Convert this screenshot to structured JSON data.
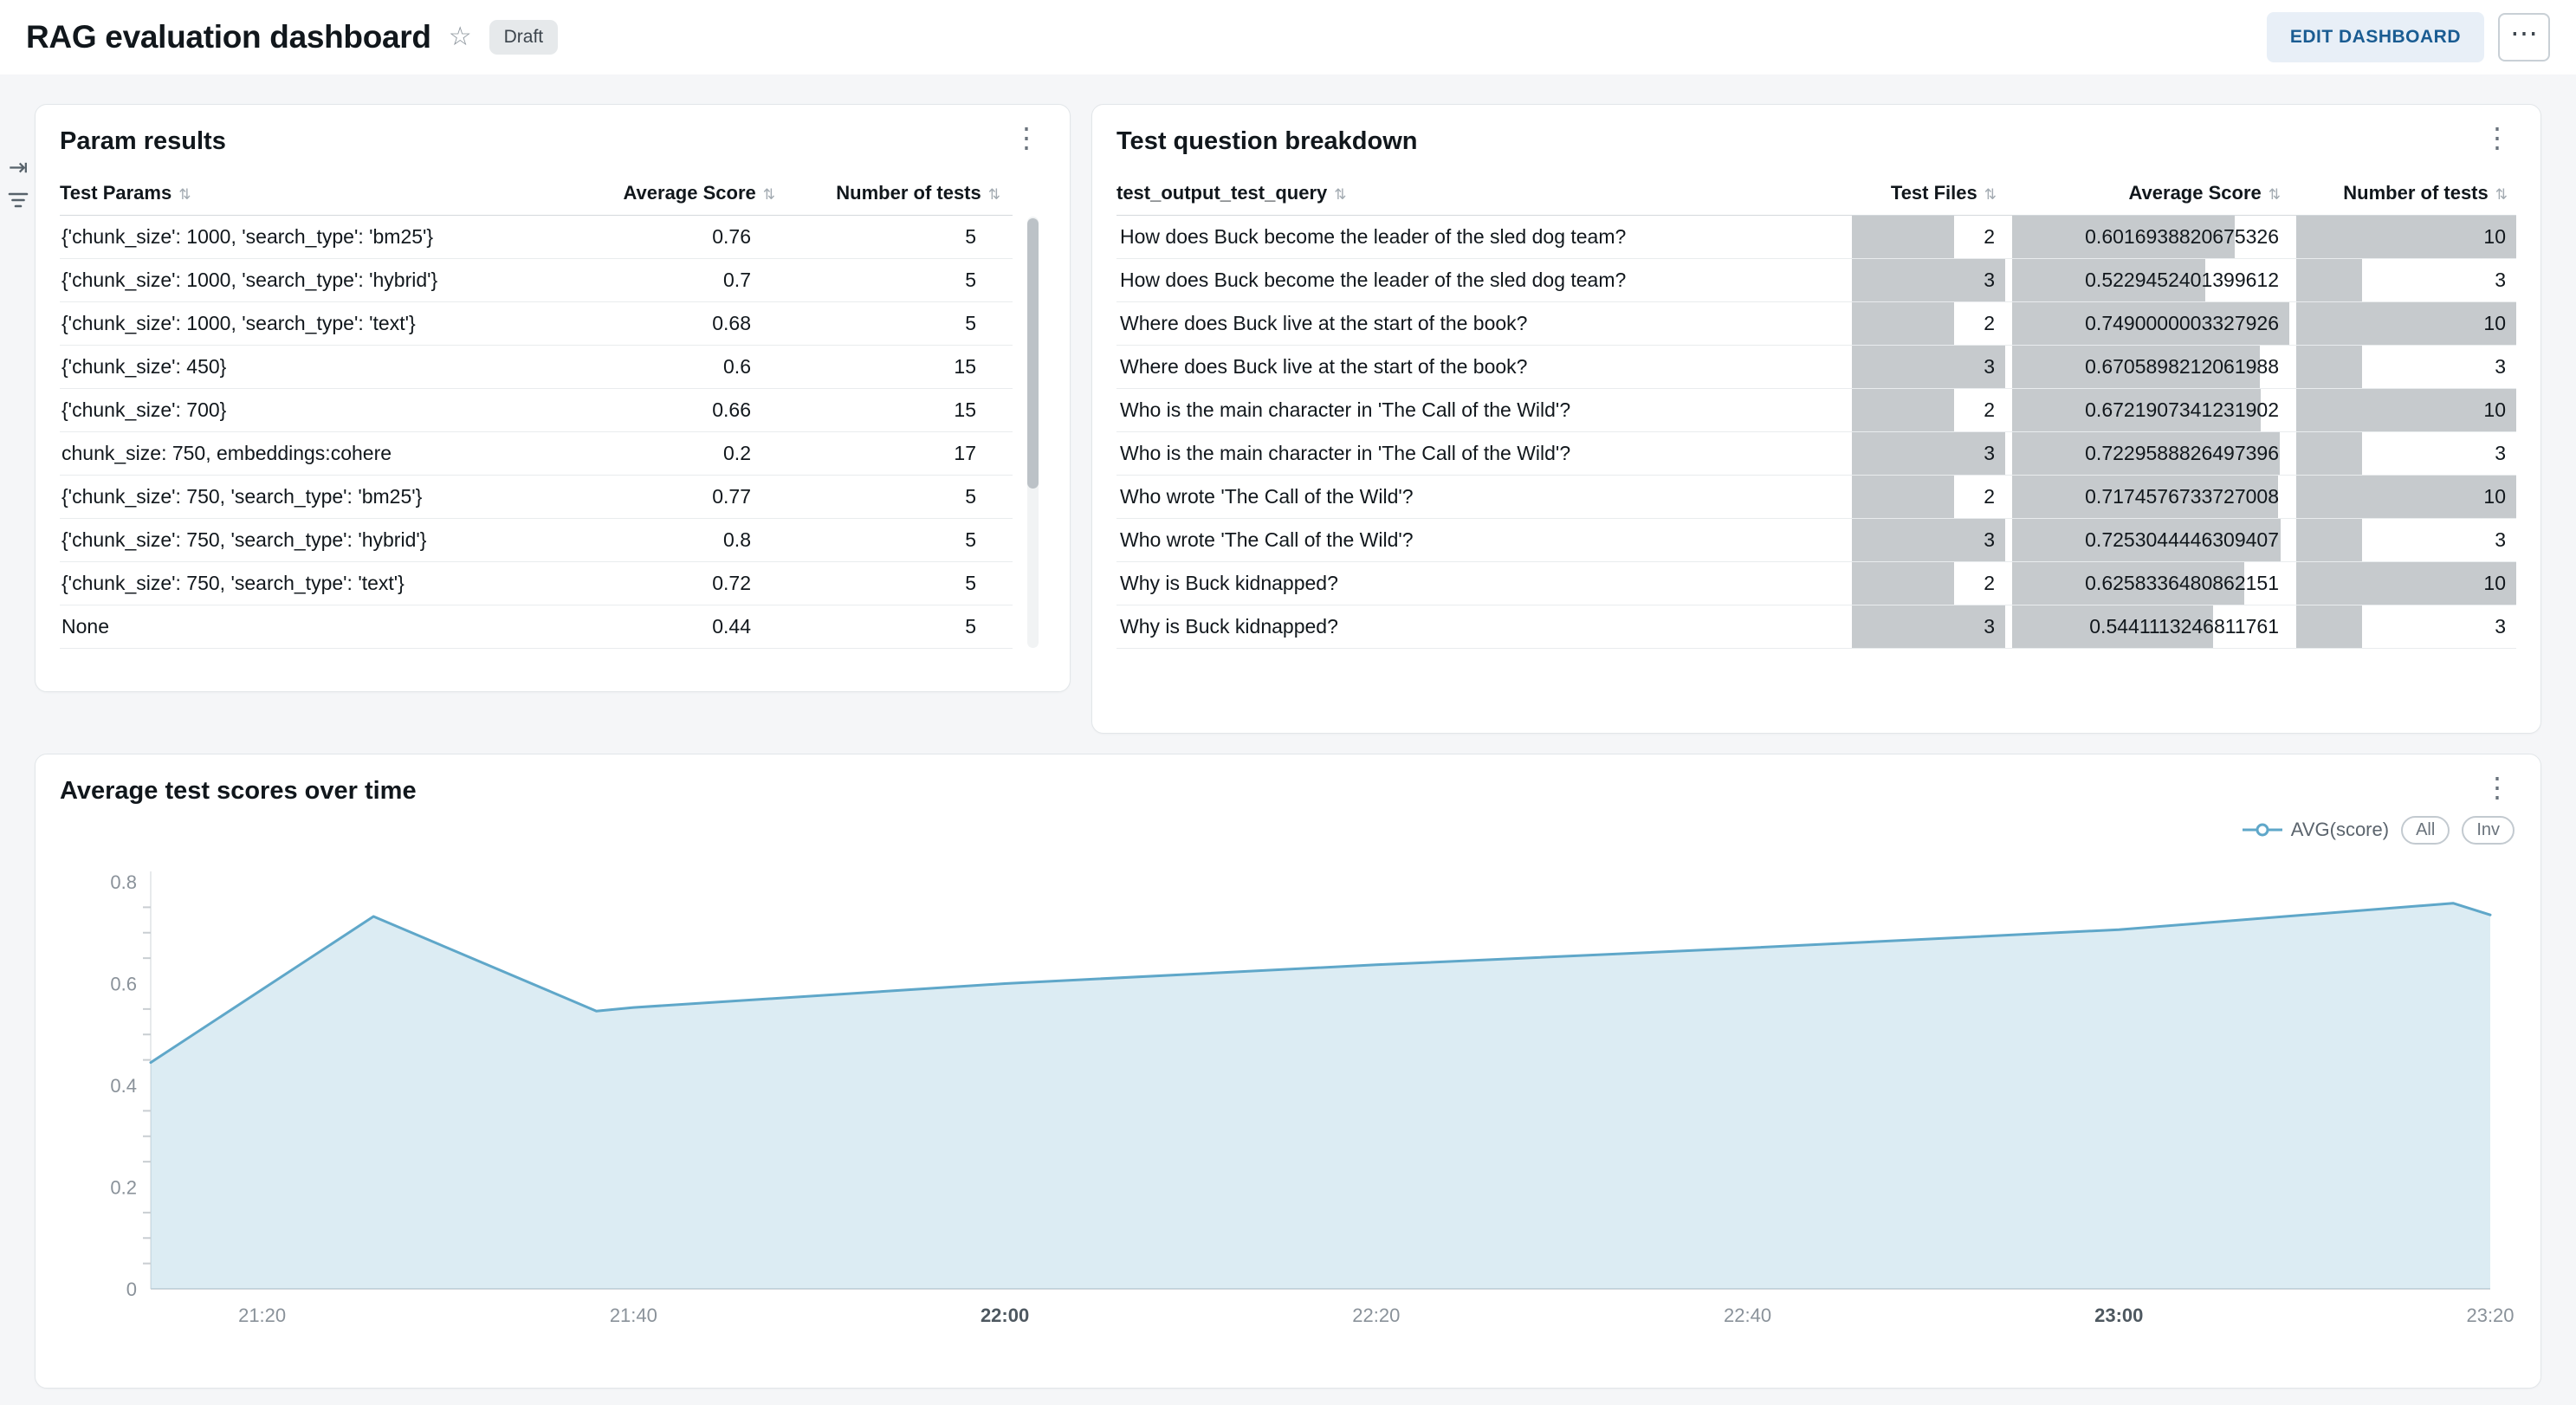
{
  "header": {
    "title": "RAG evaluation dashboard",
    "status_badge": "Draft",
    "edit_button": "EDIT DASHBOARD"
  },
  "icons": {
    "star": "☆",
    "kebab": "⋮",
    "more": "⋯",
    "sort": "⇅",
    "collapse": "⇥"
  },
  "colors": {
    "accent_blue": "#1a5c92",
    "chart_line": "#5fa7c9",
    "data_bar_gray": "#c6cacd"
  },
  "param_results": {
    "title": "Param results",
    "columns": [
      {
        "label": "Test Params",
        "align": "left"
      },
      {
        "label": "Average Score",
        "align": "right"
      },
      {
        "label": "Number of tests",
        "align": "right"
      }
    ],
    "rows": [
      {
        "params": "{'chunk_size': 1000, 'search_type': 'bm25'}",
        "avg_score": "0.76",
        "num_tests": "5"
      },
      {
        "params": "{'chunk_size': 1000, 'search_type': 'hybrid'}",
        "avg_score": "0.7",
        "num_tests": "5"
      },
      {
        "params": "{'chunk_size': 1000, 'search_type': 'text'}",
        "avg_score": "0.68",
        "num_tests": "5"
      },
      {
        "params": "{'chunk_size': 450}",
        "avg_score": "0.6",
        "num_tests": "15"
      },
      {
        "params": "{'chunk_size': 700}",
        "avg_score": "0.66",
        "num_tests": "15"
      },
      {
        "params": "chunk_size: 750, embeddings:cohere",
        "avg_score": "0.2",
        "num_tests": "17"
      },
      {
        "params": "{'chunk_size': 750, 'search_type': 'bm25'}",
        "avg_score": "0.77",
        "num_tests": "5"
      },
      {
        "params": "{'chunk_size': 750, 'search_type': 'hybrid'}",
        "avg_score": "0.8",
        "num_tests": "5"
      },
      {
        "params": "{'chunk_size': 750, 'search_type': 'text'}",
        "avg_score": "0.72",
        "num_tests": "5"
      },
      {
        "params": "None",
        "avg_score": "0.44",
        "num_tests": "5"
      }
    ]
  },
  "question_breakdown": {
    "title": "Test question breakdown",
    "columns": [
      {
        "label": "test_output_test_query",
        "align": "left"
      },
      {
        "label": "Test Files",
        "align": "right"
      },
      {
        "label": "Average Score",
        "align": "right"
      },
      {
        "label": "Number of tests",
        "align": "right"
      }
    ],
    "rows": [
      {
        "query": "How does Buck become the leader of the sled dog team?",
        "test_files": 2,
        "avg_score": "0.6016938820675326",
        "num_tests": 10
      },
      {
        "query": "How does Buck become the leader of the sled dog team?",
        "test_files": 3,
        "avg_score": "0.5229452401399612",
        "num_tests": 3
      },
      {
        "query": "Where does Buck live at the start of the book?",
        "test_files": 2,
        "avg_score": "0.7490000003327926",
        "num_tests": 10
      },
      {
        "query": "Where does Buck live at the start of the book?",
        "test_files": 3,
        "avg_score": "0.6705898212061988",
        "num_tests": 3
      },
      {
        "query": "Who is the main character in 'The Call of the Wild'?",
        "test_files": 2,
        "avg_score": "0.6721907341231902",
        "num_tests": 10
      },
      {
        "query": "Who is the main character in 'The Call of the Wild'?",
        "test_files": 3,
        "avg_score": "0.7229588826497396",
        "num_tests": 3
      },
      {
        "query": "Who wrote 'The Call of the Wild'?",
        "test_files": 2,
        "avg_score": "0.7174576733727008",
        "num_tests": 10
      },
      {
        "query": "Who wrote 'The Call of the Wild'?",
        "test_files": 3,
        "avg_score": "0.7253044446309407",
        "num_tests": 3
      },
      {
        "query": "Why is Buck kidnapped?",
        "test_files": 2,
        "avg_score": "0.6258336480862151",
        "num_tests": 10
      },
      {
        "query": "Why is Buck kidnapped?",
        "test_files": 3,
        "avg_score": "0.5441113246811761",
        "num_tests": 3
      }
    ]
  },
  "chart_data": {
    "type": "area",
    "title": "Average test scores over time",
    "series": [
      {
        "name": "AVG(score)",
        "points": [
          [
            "21:14",
            0.445
          ],
          [
            "21:26",
            0.732
          ],
          [
            "21:38",
            0.546
          ],
          [
            "21:40",
            0.553
          ],
          [
            "22:00",
            0.6
          ],
          [
            "22:20",
            0.637
          ],
          [
            "22:40",
            0.67
          ],
          [
            "23:00",
            0.706
          ],
          [
            "23:18",
            0.758
          ],
          [
            "23:20",
            0.735
          ]
        ]
      }
    ],
    "xlabel": "",
    "ylabel": "",
    "ylim": [
      0,
      0.8
    ],
    "yticks": [
      0,
      0.2,
      0.4,
      0.6,
      0.8
    ],
    "y_minor_step": 0.05,
    "xticks": [
      "21:20",
      "21:40",
      "22:00",
      "22:20",
      "22:40",
      "23:00",
      "23:20"
    ],
    "bold_xticks": [
      "22:00",
      "23:00"
    ],
    "x_range": [
      "21:14",
      "23:20"
    ],
    "grid": false,
    "legend_position": "top-right",
    "line_color": "#5fa7c9",
    "fill_color": "rgba(95,167,201,0.22)",
    "toggles": [
      "All",
      "Inv"
    ]
  }
}
